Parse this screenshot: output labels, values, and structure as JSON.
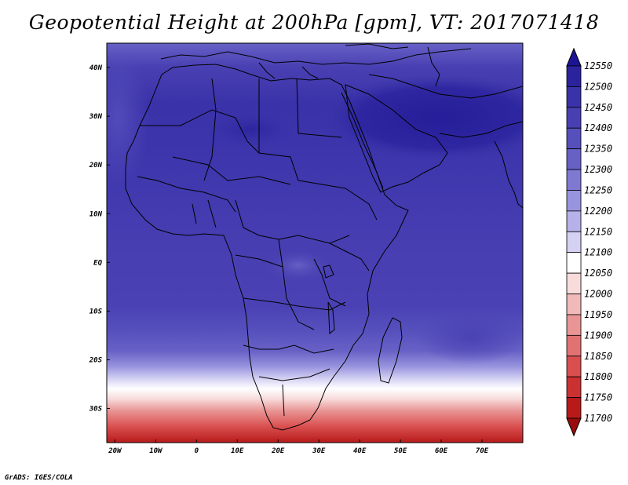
{
  "title": "Geopotential Height at 200hPa [gpm], VT: 2017071418",
  "credit": "GrADS: IGES/COLA",
  "map": {
    "region": "Africa and Middle East",
    "lon_range": [
      -22,
      80
    ],
    "lat_range": [
      -37,
      45
    ],
    "lon_ticks": [
      "20W",
      "10W",
      "0",
      "10E",
      "20E",
      "30E",
      "40E",
      "50E",
      "60E",
      "70E"
    ],
    "lat_ticks": [
      "40N",
      "30N",
      "20N",
      "10N",
      "EQ",
      "10S",
      "20S",
      "30S"
    ]
  },
  "colorbar": {
    "labels": [
      "12550",
      "12500",
      "12450",
      "12400",
      "12350",
      "12300",
      "12250",
      "12200",
      "12150",
      "12100",
      "12050",
      "12000",
      "11950",
      "11900",
      "11850",
      "11800",
      "11750",
      "11700"
    ],
    "colors": [
      "#1c1496",
      "#2b239e",
      "#3a32a8",
      "#4840b2",
      "#5650bd",
      "#6761c6",
      "#7f79d2",
      "#9994de",
      "#b6b1e9",
      "#d4d1f3",
      "#ffffff",
      "#f8dcdc",
      "#f1b9b9",
      "#e99595",
      "#e27272",
      "#d94f4f",
      "#cc3131",
      "#b81a1a",
      "#9a0c0c"
    ]
  }
}
